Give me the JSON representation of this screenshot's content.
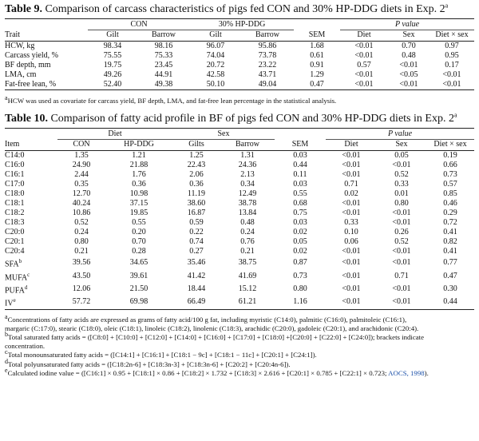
{
  "table9": {
    "caption": {
      "label": "Table 9.",
      "text": " Comparison of carcass characteristics of pigs fed CON and 30% HP-DDG diets in Exp. 2",
      "sup": "a"
    },
    "group_headers": {
      "con": "CON",
      "hpddg": "30% HP-DDG",
      "pvalue": "P value"
    },
    "columns": [
      "Trait",
      "Gilt",
      "Barrow",
      "Gilt",
      "Barrow",
      "SEM",
      "Diet",
      "Sex",
      "Diet × sex"
    ],
    "rows": [
      [
        "HCW, kg",
        "98.34",
        "98.16",
        "96.07",
        "95.86",
        "1.68",
        "<0.01",
        "0.70",
        "0.97"
      ],
      [
        "Carcass yield, %",
        "75.55",
        "75.33",
        "74.04",
        "73.78",
        "0.61",
        "<0.01",
        "0.48",
        "0.95"
      ],
      [
        "BF depth, mm",
        "19.75",
        "23.45",
        "20.72",
        "23.22",
        "0.91",
        "0.57",
        "<0.01",
        "0.17"
      ],
      [
        "LMA, cm",
        "49.26",
        "44.91",
        "42.58",
        "43.71",
        "1.29",
        "<0.01",
        "<0.05",
        "<0.01"
      ],
      [
        "Fat-free lean, %",
        "52.40",
        "49.38",
        "50.10",
        "49.04",
        "0.47",
        "<0.01",
        "<0.01",
        "<0.01"
      ]
    ],
    "footnote": "HCW was used as covariate for carcass yield, BF depth, LMA, and fat-free lean percentage in the statistical analysis.",
    "footnote_sup": "a"
  },
  "table10": {
    "caption": {
      "label": "Table 10.",
      "text": " Comparison of fatty acid profile in BF of pigs fed CON and 30% HP-DDG diets in Exp. 2",
      "sup": "a"
    },
    "group_headers": {
      "diet": "Diet",
      "sex": "Sex",
      "pvalue": "P value"
    },
    "columns": [
      "Item",
      "CON",
      "HP-DDG",
      "Gilts",
      "Barrow",
      "SEM",
      "Diet",
      "Sex",
      "Diet × sex"
    ],
    "rows": [
      {
        "item": "C14:0",
        "sup": "",
        "v": [
          "1.35",
          "1.21",
          "1.25",
          "1.31",
          "0.03",
          "<0.01",
          "0.05",
          "0.19"
        ]
      },
      {
        "item": "C16:0",
        "sup": "",
        "v": [
          "24.90",
          "21.88",
          "22.43",
          "24.36",
          "0.44",
          "<0.01",
          "<0.01",
          "0.66"
        ]
      },
      {
        "item": "C16:1",
        "sup": "",
        "v": [
          "2.44",
          "1.76",
          "2.06",
          "2.13",
          "0.11",
          "<0.01",
          "0.52",
          "0.73"
        ]
      },
      {
        "item": "C17:0",
        "sup": "",
        "v": [
          "0.35",
          "0.36",
          "0.36",
          "0.34",
          "0.03",
          "0.71",
          "0.33",
          "0.57"
        ]
      },
      {
        "item": "C18:0",
        "sup": "",
        "v": [
          "12.70",
          "10.98",
          "11.19",
          "12.49",
          "0.55",
          "0.02",
          "0.01",
          "0.85"
        ]
      },
      {
        "item": "C18:1",
        "sup": "",
        "v": [
          "40.24",
          "37.15",
          "38.60",
          "38.78",
          "0.68",
          "<0.01",
          "0.80",
          "0.46"
        ]
      },
      {
        "item": "C18:2",
        "sup": "",
        "v": [
          "10.86",
          "19.85",
          "16.87",
          "13.84",
          "0.75",
          "<0.01",
          "<0.01",
          "0.29"
        ]
      },
      {
        "item": "C18:3",
        "sup": "",
        "v": [
          "0.52",
          "0.55",
          "0.59",
          "0.48",
          "0.03",
          "0.33",
          "<0.01",
          "0.72"
        ]
      },
      {
        "item": "C20:0",
        "sup": "",
        "v": [
          "0.24",
          "0.20",
          "0.22",
          "0.24",
          "0.02",
          "0.10",
          "0.26",
          "0.41"
        ]
      },
      {
        "item": "C20:1",
        "sup": "",
        "v": [
          "0.80",
          "0.70",
          "0.74",
          "0.76",
          "0.05",
          "0.06",
          "0.52",
          "0.82"
        ]
      },
      {
        "item": "C20:4",
        "sup": "",
        "v": [
          "0.21",
          "0.28",
          "0.27",
          "0.21",
          "0.02",
          "<0.01",
          "<0.01",
          "0.41"
        ]
      },
      {
        "item": "SFA",
        "sup": "b",
        "v": [
          "39.56",
          "34.65",
          "35.46",
          "38.75",
          "0.87",
          "<0.01",
          "<0.01",
          "0.77"
        ]
      },
      {
        "item": "MUFA",
        "sup": "c",
        "v": [
          "43.50",
          "39.61",
          "41.42",
          "41.69",
          "0.73",
          "<0.01",
          "0.71",
          "0.47"
        ]
      },
      {
        "item": "PUFA",
        "sup": "d",
        "v": [
          "12.06",
          "21.50",
          "18.44",
          "15.12",
          "0.80",
          "<0.01",
          "<0.01",
          "0.30"
        ]
      },
      {
        "item": "IV",
        "sup": "e",
        "v": [
          "57.72",
          "69.98",
          "66.49",
          "61.21",
          "1.16",
          "<0.01",
          "<0.01",
          "0.44"
        ]
      }
    ],
    "footnotes": [
      {
        "sup": "a",
        "lines": [
          "Concentrations of fatty acids are expressed as grams of fatty acid/100 g fat, including myristic (C14:0), palmitic (C16:0), palmitoleic (C16:1),",
          "margaric (C:17:0), stearic (C18:0), oleic (C18:1), linoleic (C18:2), linolenic (C18:3), arachidic (C20:0), gadoleic (C20:1), and arachidonic (C20:4)."
        ]
      },
      {
        "sup": "b",
        "lines": [
          "Total saturated fatty acids = ([C8:0] + [C10:0] + [C12:0] + [C14:0] + [C16:0] + [C17:0] + [C18:0] +[C20:0] + [C22:0] + [C24:0]); brackets indicate",
          "concentration."
        ]
      },
      {
        "sup": "c",
        "lines": [
          "Total monounsaturated fatty acids = ([C14:1] + [C16:1] + [C18:1 − 9c] + [C18:1 − 11c] + [C20:1] + [C24:1])."
        ]
      },
      {
        "sup": "d",
        "lines": [
          "Total polyunsaturated fatty acids = ([C18:2n-6] + [C18:3n-3] + [C18:3n-6] + [C20:2] + [C20:4n-6])."
        ]
      },
      {
        "sup": "e",
        "lines": [
          "Calculated iodine value = ([C16:1] × 0.95 + [C18:1] × 0.86 + [C18:2] × 1.732 + [C18:3] × 2.616 + [C20:1] × 0.785 + [C22:1] × 0.723; "
        ],
        "link": "AOCS, 1998",
        "tail": ")."
      }
    ]
  }
}
